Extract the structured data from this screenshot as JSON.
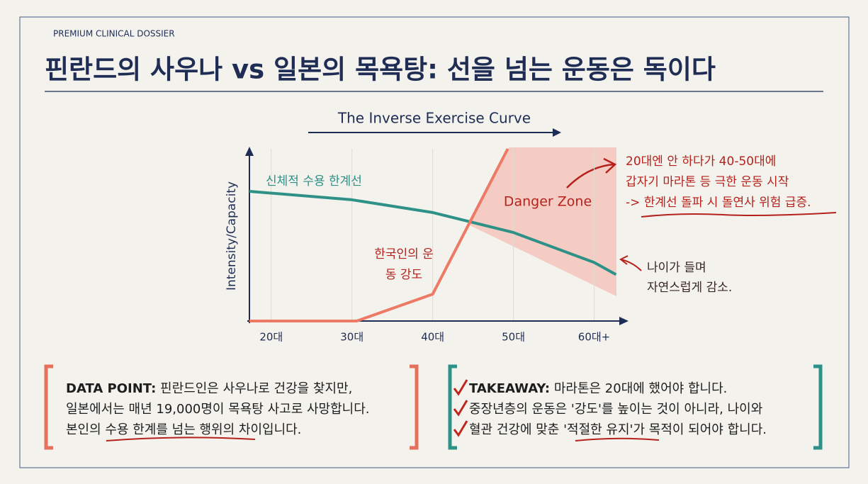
{
  "header": {
    "kicker": "PREMIUM CLINICAL DOSSIER",
    "title": "핀란드의 사우나 vs 일본의 목욕탕: 선을 넘는 운동은 독이다"
  },
  "chart_data": {
    "type": "line",
    "title": "The Inverse Exercise Curve",
    "y_label": "Intensity/Capacity",
    "xlim": [
      17.3,
      63.2
    ],
    "ylim": [
      0,
      100
    ],
    "xticks": [
      {
        "value": 20,
        "label": "20대"
      },
      {
        "value": 30,
        "label": "30대"
      },
      {
        "value": 40,
        "label": "40대"
      },
      {
        "value": 50,
        "label": "50대"
      },
      {
        "value": 60,
        "label": "60대+"
      }
    ],
    "series": [
      {
        "name": "신체적 수용 한계선",
        "color": "#2e9187",
        "x": [
          17.3,
          30,
          40,
          50,
          60,
          62.7
        ],
        "values": [
          75.3,
          70.4,
          63,
          51.4,
          34,
          27
        ]
      },
      {
        "name": "한국인의 운동 강도",
        "color": "#ec7a65",
        "x": [
          17.3,
          30.6,
          40,
          49.3
        ],
        "values": [
          0,
          0,
          15.6,
          100
        ]
      }
    ],
    "annotations": {
      "danger_zone": "Danger Zone",
      "surge": [
        "20대엔 안 하다가 40-50대에",
        "갑자기 마라톤 등 극한 운동 시작",
        "-> 한계선 돌파 시 돌연사 위험 급증."
      ],
      "decline": [
        "나이가 들며",
        "자연스럽게 감소."
      ]
    }
  },
  "data_point": {
    "label": "DATA POINT:",
    "lines": [
      "핀란드인은 사우나로 건강을 찾지만,",
      "일본에서는 매년 19,000명이 목욕탕 사고로 사망합니다.",
      "본인의 수용 한계를 넘는 행위의 차이입니다."
    ]
  },
  "takeaway": {
    "label": "TAKEAWAY:",
    "lines": [
      "마라톤은 20대에 했어야 합니다.",
      "중장년층의 운동은 '강도'를 높이는 것이 아니라, 나이와",
      "혈관 건강에 맞춘 '적절한 유지'가 목적이 되어야 합니다."
    ]
  }
}
